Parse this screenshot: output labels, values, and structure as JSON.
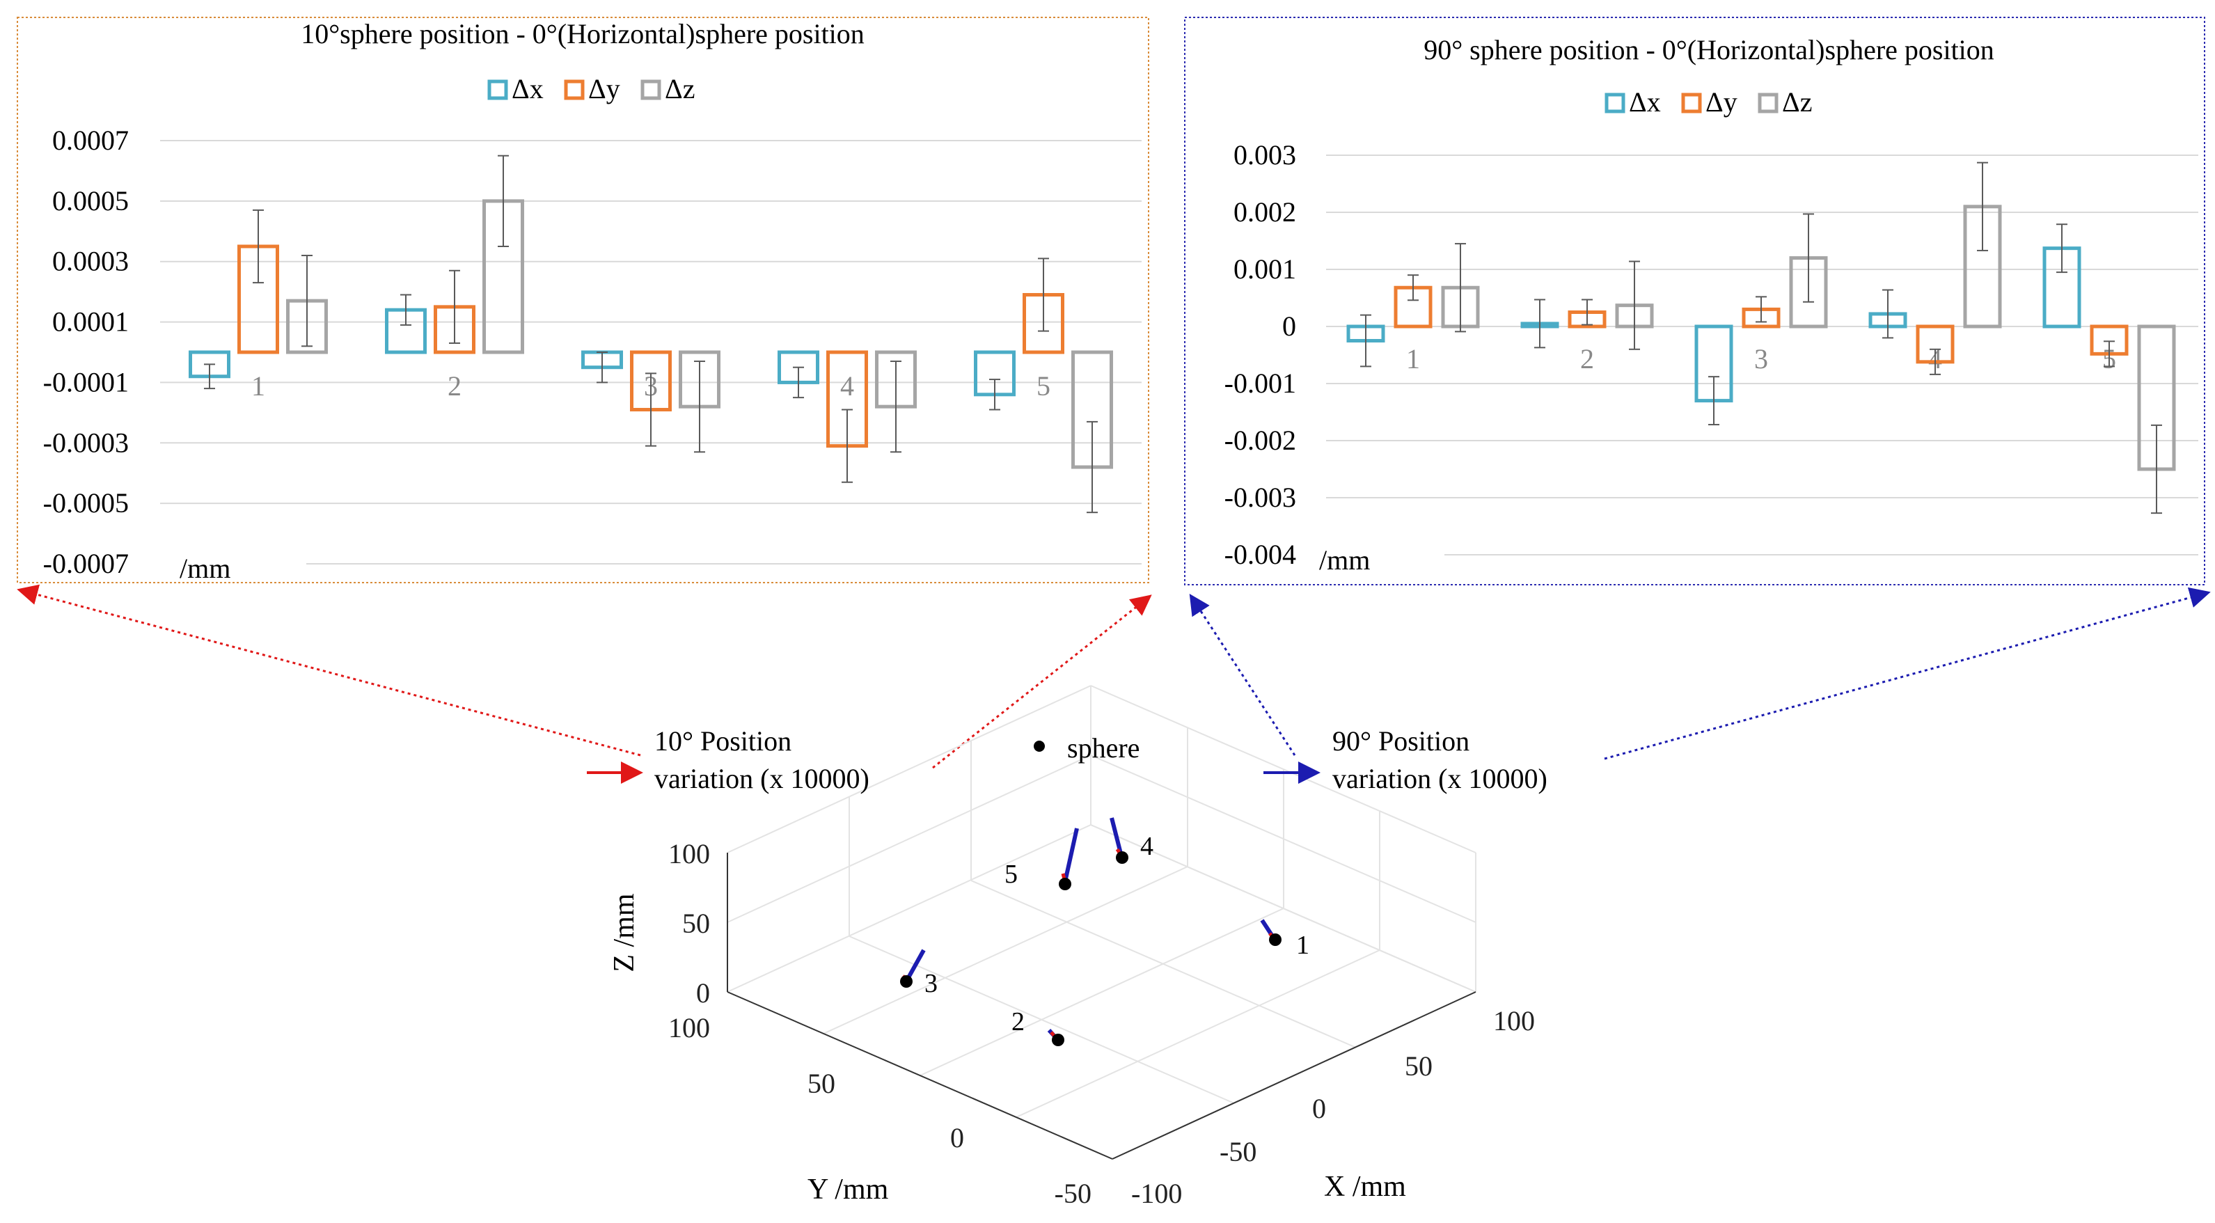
{
  "colors": {
    "dx": "#4BACC6",
    "dy": "#ED7D31",
    "dz": "#A5A5A5",
    "frame_left": "#D98C3A",
    "frame_right": "#2B2BB0",
    "arrow_red": "#E01818",
    "arrow_blue": "#1C1CB0",
    "grid": "#D9D9D9",
    "errbar": "#595959"
  },
  "chart_data": [
    {
      "type": "bar",
      "title": "10°sphere position - 0°(Horizontal)sphere position",
      "ylabel": "/mm",
      "ylim": [
        -0.0007,
        0.0007
      ],
      "yticks": [
        0.0007,
        0.0005,
        0.0003,
        0.0001,
        -0.0001,
        -0.0003,
        -0.0005,
        -0.0007
      ],
      "ytick_labels": [
        "0.0007",
        "0.0005",
        "0.0003",
        "0.0001",
        "-0.0001",
        "-0.0003",
        "-0.0005",
        "-0.0007"
      ],
      "categories": [
        "1",
        "2",
        "3",
        "4",
        "5"
      ],
      "legend": [
        "Δx",
        "Δy",
        "Δz"
      ],
      "series": [
        {
          "name": "Δx",
          "values": [
            -8e-05,
            0.00014,
            -5e-05,
            -0.0001,
            -0.00014
          ],
          "errors": [
            4e-05,
            5e-05,
            5e-05,
            5e-05,
            5e-05
          ]
        },
        {
          "name": "Δy",
          "values": [
            0.00035,
            0.00015,
            -0.00019,
            -0.00031,
            0.00019
          ],
          "errors": [
            0.00012,
            0.00012,
            0.00012,
            0.00012,
            0.00012
          ]
        },
        {
          "name": "Δz",
          "values": [
            0.00017,
            0.0005,
            -0.00018,
            -0.00018,
            -0.00038
          ],
          "errors": [
            0.00015,
            0.00015,
            0.00015,
            0.00015,
            0.00015
          ]
        }
      ]
    },
    {
      "type": "bar",
      "title": "90° sphere position - 0°(Horizontal)sphere position",
      "ylabel": "/mm",
      "ylim": [
        -0.004,
        0.003
      ],
      "yticks": [
        0.003,
        0.002,
        0.001,
        0,
        -0.001,
        -0.002,
        -0.003,
        -0.004
      ],
      "ytick_labels": [
        "0.003",
        "0.002",
        "0.001",
        "0",
        "-0.001",
        "-0.002",
        "-0.003",
        "-0.004"
      ],
      "categories": [
        "1",
        "2",
        "3",
        "4",
        "5"
      ],
      "legend": [
        "Δx",
        "Δy",
        "Δz"
      ],
      "series": [
        {
          "name": "Δx",
          "values": [
            -0.00025,
            5e-05,
            -0.0013,
            0.00022,
            0.00137
          ],
          "errors": [
            0.00045,
            0.00042,
            0.00042,
            0.00042,
            0.00042
          ]
        },
        {
          "name": "Δy",
          "values": [
            0.00068,
            0.00025,
            0.0003,
            -0.00062,
            -0.00048
          ],
          "errors": [
            0.00022,
            0.00022,
            0.00022,
            0.00022,
            0.00022
          ]
        },
        {
          "name": "Δz",
          "values": [
            0.00068,
            0.00037,
            0.0012,
            0.0021,
            -0.0025
          ],
          "errors": [
            0.00077,
            0.00077,
            0.00077,
            0.00077,
            0.00077
          ]
        }
      ]
    },
    {
      "type": "scatter3d",
      "legend": {
        "red_label_line1": "10° Position",
        "red_label_line2": "variation (x 10000)",
        "sphere_label": "sphere",
        "blue_label_line1": "90° Position",
        "blue_label_line2": "variation (x 10000)"
      },
      "zlabel": "Z /mm",
      "ylabel": "Y /mm",
      "xlabel": "X /mm",
      "zticks": [
        "0",
        "50",
        "100"
      ],
      "yticks": [
        "100",
        "50",
        "0",
        "-50"
      ],
      "xticks": [
        "-100",
        "-50",
        "0",
        "50",
        "100"
      ],
      "spheres": [
        {
          "label": "1",
          "x": 80,
          "y": 0,
          "z": 0
        },
        {
          "label": "2",
          "x": 0,
          "y": -45,
          "z": 0
        },
        {
          "label": "3",
          "x": -80,
          "y": 25,
          "z": 0
        },
        {
          "label": "4",
          "x": 45,
          "y": 80,
          "z": 0
        },
        {
          "label": "5",
          "x": 0,
          "y": 60,
          "z": 0
        }
      ]
    }
  ]
}
